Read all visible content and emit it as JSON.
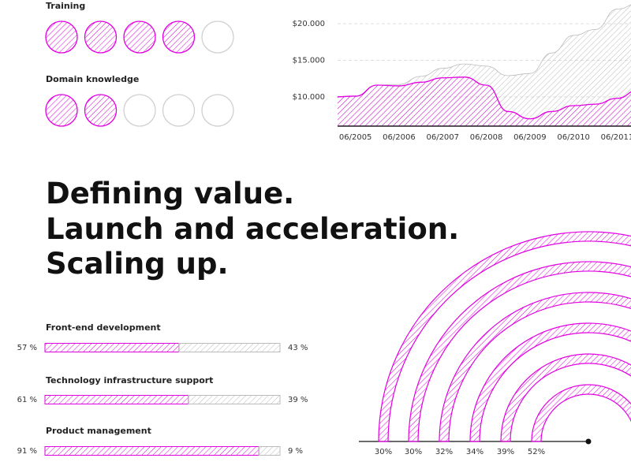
{
  "chart_data": [
    {
      "type": "rating",
      "categories": [
        "Training",
        "Domain knowledge"
      ],
      "values": [
        4,
        2
      ],
      "max": 5,
      "color": "#e100e1"
    },
    {
      "type": "area",
      "categories": [
        null,
        "06/2005",
        null,
        "06/2006",
        null,
        "06/2007",
        null,
        "06/2008",
        null,
        "06/2009",
        null,
        "06/2010",
        null,
        "06/2011",
        null
      ],
      "series": [
        {
          "color": "#bbbbbb",
          "values": [
            10000,
            10100,
            11600,
            11700,
            12800,
            13900,
            14500,
            14200,
            12900,
            13200,
            16000,
            18400,
            19200,
            22000,
            22800
          ]
        },
        {
          "color": "#e100e1",
          "values": [
            10000,
            10100,
            11600,
            11500,
            12000,
            12600,
            12700,
            11600,
            8000,
            7000,
            8000,
            8800,
            9000,
            9800,
            11000
          ]
        }
      ],
      "ylim": [
        6000,
        21000
      ],
      "yticks": [
        {
          "value": 10000,
          "label": "$10.000"
        },
        {
          "value": 15000,
          "label": "$15.000"
        },
        {
          "value": 20000,
          "label": "$20.000"
        }
      ],
      "grid": true
    },
    {
      "type": "progress",
      "categories": [
        "Front-end development",
        "Technology infrastructure support",
        "Product management"
      ],
      "series": [
        {
          "color": "#e100e1",
          "values": [
            57,
            61,
            91
          ],
          "value_labels": [
            "57 %",
            "61 %",
            "91 %"
          ]
        },
        {
          "color": "#bbbbbb",
          "values": [
            43,
            39,
            9
          ],
          "value_labels": [
            "43 %",
            "39 %",
            "9 %"
          ]
        }
      ],
      "xlim": [
        0,
        100
      ]
    },
    {
      "type": "radial",
      "values": [
        30,
        30,
        32,
        34,
        39,
        52
      ],
      "value_labels": [
        "30%",
        "30%",
        "32%",
        "34%",
        "39%",
        "52%"
      ],
      "color": "#e100e1"
    }
  ],
  "headline": [
    "Defining value.",
    "Launch and acceleration.",
    "Scaling up."
  ]
}
